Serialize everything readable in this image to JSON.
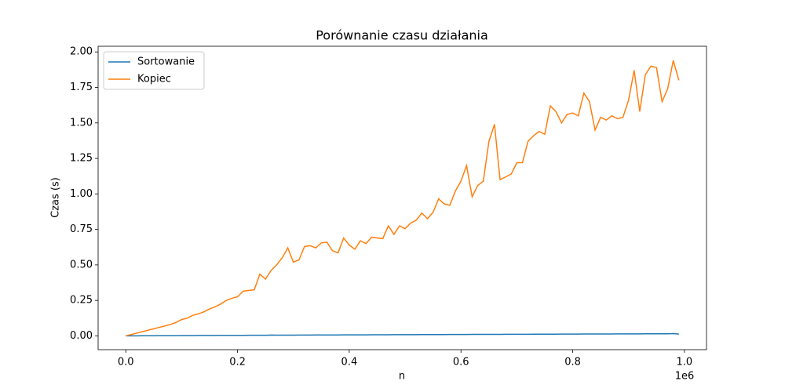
{
  "chart_data": {
    "type": "line",
    "title": "Porównanie czasu działania",
    "x_label": "n",
    "y_label": "Czas (s)",
    "x_offset_text": "1e6",
    "x": [
      0,
      10000,
      20000,
      30000,
      40000,
      50000,
      60000,
      70000,
      80000,
      90000,
      100000,
      110000,
      120000,
      130000,
      140000,
      150000,
      160000,
      170000,
      180000,
      190000,
      200000,
      210000,
      220000,
      230000,
      240000,
      250000,
      260000,
      270000,
      280000,
      290000,
      300000,
      310000,
      320000,
      330000,
      340000,
      350000,
      360000,
      370000,
      380000,
      390000,
      400000,
      410000,
      420000,
      430000,
      440000,
      450000,
      460000,
      470000,
      480000,
      490000,
      500000,
      510000,
      520000,
      530000,
      540000,
      550000,
      560000,
      570000,
      580000,
      590000,
      600000,
      610000,
      620000,
      630000,
      640000,
      650000,
      660000,
      670000,
      680000,
      690000,
      700000,
      710000,
      720000,
      730000,
      740000,
      750000,
      760000,
      770000,
      780000,
      790000,
      800000,
      810000,
      820000,
      830000,
      840000,
      850000,
      860000,
      870000,
      880000,
      890000,
      900000,
      910000,
      920000,
      930000,
      940000,
      950000,
      960000,
      970000,
      980000,
      990000
    ],
    "series": [
      {
        "name": "Sortowanie",
        "color": "#1f77b4",
        "values": [
          0,
          0.0003,
          0.0005,
          0.0008,
          0.001,
          0.0012,
          0.0015,
          0.0016,
          0.0018,
          0.002,
          0.0022,
          0.0024,
          0.0026,
          0.0028,
          0.003,
          0.0031,
          0.0033,
          0.0035,
          0.0036,
          0.0038,
          0.004,
          0.0041,
          0.0043,
          0.0044,
          0.0046,
          0.0048,
          0.006,
          0.005,
          0.0052,
          0.0054,
          0.0055,
          0.0057,
          0.0058,
          0.006,
          0.0062,
          0.0063,
          0.0065,
          0.0066,
          0.0068,
          0.007,
          0.0071,
          0.0072,
          0.0074,
          0.0075,
          0.0077,
          0.0078,
          0.008,
          0.0082,
          0.0083,
          0.0085,
          0.0086,
          0.0088,
          0.0089,
          0.009,
          0.0092,
          0.0093,
          0.0095,
          0.0096,
          0.0098,
          0.0099,
          0.0101,
          0.0102,
          0.0104,
          0.0105,
          0.0106,
          0.0108,
          0.0109,
          0.011,
          0.0112,
          0.0113,
          0.0115,
          0.0116,
          0.0117,
          0.0119,
          0.012,
          0.0121,
          0.0123,
          0.0124,
          0.0125,
          0.0127,
          0.0128,
          0.0129,
          0.0131,
          0.0132,
          0.0133,
          0.0135,
          0.0136,
          0.0137,
          0.0139,
          0.014,
          0.0141,
          0.0143,
          0.0144,
          0.0145,
          0.0147,
          0.0148,
          0.0149,
          0.015,
          0.0165,
          0.0125
        ]
      },
      {
        "name": "Kopiec",
        "color": "#ff7f0e",
        "values": [
          0,
          0.01,
          0.02,
          0.03,
          0.04,
          0.05,
          0.06,
          0.07,
          0.08,
          0.095,
          0.115,
          0.125,
          0.145,
          0.155,
          0.17,
          0.19,
          0.205,
          0.225,
          0.25,
          0.265,
          0.275,
          0.315,
          0.32,
          0.325,
          0.435,
          0.4,
          0.46,
          0.5,
          0.55,
          0.62,
          0.52,
          0.535,
          0.63,
          0.635,
          0.62,
          0.655,
          0.66,
          0.6,
          0.585,
          0.69,
          0.64,
          0.61,
          0.67,
          0.65,
          0.695,
          0.69,
          0.685,
          0.775,
          0.715,
          0.775,
          0.755,
          0.795,
          0.815,
          0.865,
          0.825,
          0.87,
          0.965,
          0.93,
          0.92,
          1.02,
          1.09,
          1.2,
          0.98,
          1.06,
          1.09,
          1.37,
          1.49,
          1.1,
          1.12,
          1.14,
          1.22,
          1.22,
          1.37,
          1.41,
          1.44,
          1.42,
          1.62,
          1.58,
          1.5,
          1.56,
          1.57,
          1.55,
          1.71,
          1.65,
          1.45,
          1.54,
          1.52,
          1.55,
          1.53,
          1.54,
          1.66,
          1.87,
          1.58,
          1.84,
          1.9,
          1.89,
          1.65,
          1.74,
          1.94,
          1.8
        ]
      }
    ],
    "xlim": [
      -49500,
      1039500
    ],
    "ylim": [
      -0.097,
      2.04
    ],
    "xticks": [
      {
        "value": 0,
        "label": "0.0"
      },
      {
        "value": 200000,
        "label": "0.2"
      },
      {
        "value": 400000,
        "label": "0.4"
      },
      {
        "value": 600000,
        "label": "0.6"
      },
      {
        "value": 800000,
        "label": "0.8"
      },
      {
        "value": 1000000,
        "label": "1.0"
      }
    ],
    "yticks": [
      {
        "value": 0,
        "label": "0.00"
      },
      {
        "value": 0.25,
        "label": "0.25"
      },
      {
        "value": 0.5,
        "label": "0.50"
      },
      {
        "value": 0.75,
        "label": "0.75"
      },
      {
        "value": 1,
        "label": "1.00"
      },
      {
        "value": 1.25,
        "label": "1.25"
      },
      {
        "value": 1.5,
        "label": "1.50"
      },
      {
        "value": 1.75,
        "label": "1.75"
      },
      {
        "value": 2,
        "label": "2.00"
      }
    ],
    "legend": "upper left"
  }
}
